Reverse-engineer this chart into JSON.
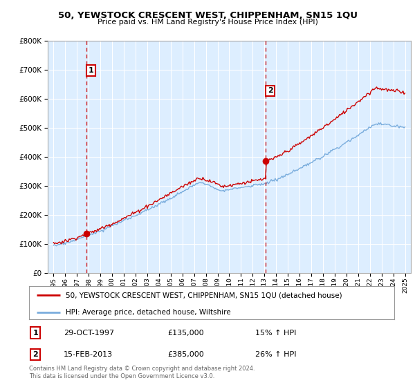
{
  "title": "50, YEWSTOCK CRESCENT WEST, CHIPPENHAM, SN15 1QU",
  "subtitle": "Price paid vs. HM Land Registry's House Price Index (HPI)",
  "legend_line1": "50, YEWSTOCK CRESCENT WEST, CHIPPENHAM, SN15 1QU (detached house)",
  "legend_line2": "HPI: Average price, detached house, Wiltshire",
  "footnote": "Contains HM Land Registry data © Crown copyright and database right 2024.\nThis data is licensed under the Open Government Licence v3.0.",
  "annotation1_date": "29-OCT-1997",
  "annotation1_price": "£135,000",
  "annotation1_hpi": "15% ↑ HPI",
  "annotation2_date": "15-FEB-2013",
  "annotation2_price": "£385,000",
  "annotation2_hpi": "26% ↑ HPI",
  "sale1_x": 1997.83,
  "sale1_y": 135000,
  "sale2_x": 2013.12,
  "sale2_y": 385000,
  "hpi_color": "#7aaddd",
  "price_color": "#cc0000",
  "dashed_color": "#cc0000",
  "plot_bg_color": "#ddeeff",
  "background_color": "#ffffff",
  "grid_color": "#ffffff",
  "ylim": [
    0,
    800000
  ],
  "xlim": [
    1994.5,
    2025.5
  ],
  "yticks": [
    0,
    100000,
    200000,
    300000,
    400000,
    500000,
    600000,
    700000,
    800000
  ],
  "xticks": [
    1995,
    1996,
    1997,
    1998,
    1999,
    2000,
    2001,
    2002,
    2003,
    2004,
    2005,
    2006,
    2007,
    2008,
    2009,
    2010,
    2011,
    2012,
    2013,
    2014,
    2015,
    2016,
    2017,
    2018,
    2019,
    2020,
    2021,
    2022,
    2023,
    2024,
    2025
  ]
}
